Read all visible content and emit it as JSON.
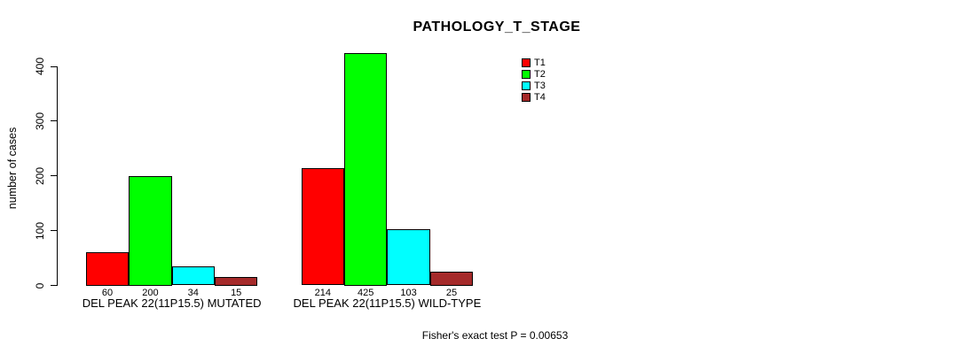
{
  "title": "PATHOLOGY_T_STAGE",
  "footer": {
    "fisher_text": "Fisher's exact test P = 0.00653"
  },
  "chart_data": {
    "type": "bar",
    "title": "PATHOLOGY_T_STAGE",
    "xlabel": "",
    "ylabel": "number of cases",
    "ylim": [
      0,
      400
    ],
    "yticks": [
      0,
      100,
      200,
      300,
      400
    ],
    "grid": false,
    "legend_position": "top-right",
    "categories": [
      "DEL PEAK 22(11P15.5) MUTATED",
      "DEL PEAK 22(11P15.5) WILD-TYPE"
    ],
    "series": [
      {
        "name": "T1",
        "color": "#ff0000",
        "values": [
          60,
          214
        ]
      },
      {
        "name": "T2",
        "color": "#00ff00",
        "values": [
          200,
          425
        ]
      },
      {
        "name": "T3",
        "color": "#00ffff",
        "values": [
          34,
          103
        ]
      },
      {
        "name": "T4",
        "color": "#a52a2a",
        "values": [
          15,
          25
        ]
      }
    ],
    "bar_value_labels_shown": true,
    "annotation": "Fisher's exact test P = 0.00653"
  }
}
